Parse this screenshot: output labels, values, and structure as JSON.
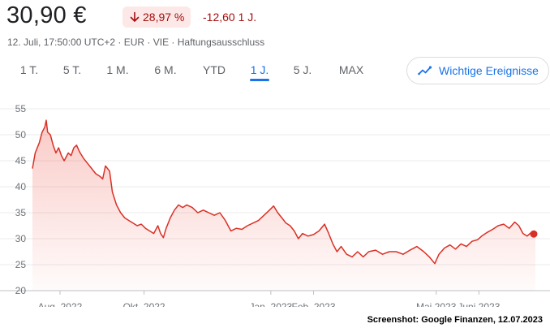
{
  "quote": {
    "price": "30,90 €",
    "change_percent": "28,97 %",
    "change_abs": "-12,60 1 J.",
    "meta": "12. Juli, 17:50:00 UTC+2 · EUR · VIE · Haftungsausschluss"
  },
  "ranges": [
    "1 T.",
    "5 T.",
    "1 M.",
    "6 M.",
    "YTD",
    "1 J.",
    "5 J.",
    "MAX"
  ],
  "active_range": "1 J.",
  "events_button": {
    "label": "Wichtige Ereignisse",
    "icon": "trend-line-icon"
  },
  "colors": {
    "negative": "#d93025",
    "negative_bg": "#fce8e6",
    "negative_text": "#a50e0e",
    "accent": "#1a73e8"
  },
  "credit": "Screenshot: Google Finanzen, 12.07.2023",
  "chart_data": {
    "type": "area",
    "ylim": [
      20,
      55
    ],
    "yticks": [
      20,
      25,
      30,
      35,
      40,
      45,
      50,
      55
    ],
    "x_domain": [
      "2022-07-12",
      "2023-07-12"
    ],
    "xticks": [
      {
        "date": "2022-08-01",
        "label": "Aug. 2022"
      },
      {
        "date": "2022-10-01",
        "label": "Okt. 2022"
      },
      {
        "date": "2023-01-01",
        "label": "Jan. 2023"
      },
      {
        "date": "2023-02-01",
        "label": "Feb. 2023"
      },
      {
        "date": "2023-05-01",
        "label": "Mai 2023"
      },
      {
        "date": "2023-06-01",
        "label": "Juni 2023"
      }
    ],
    "grid": true,
    "series": [
      {
        "points": [
          [
            "2022-07-12",
            43.5
          ],
          [
            "2022-07-14",
            46.5
          ],
          [
            "2022-07-17",
            48.5
          ],
          [
            "2022-07-19",
            50.5
          ],
          [
            "2022-07-21",
            51.5
          ],
          [
            "2022-07-22",
            52.8
          ],
          [
            "2022-07-23",
            50.5
          ],
          [
            "2022-07-25",
            50.0
          ],
          [
            "2022-07-27",
            48.0
          ],
          [
            "2022-07-29",
            46.5
          ],
          [
            "2022-07-31",
            47.5
          ],
          [
            "2022-08-02",
            46.0
          ],
          [
            "2022-08-04",
            45.0
          ],
          [
            "2022-08-07",
            46.5
          ],
          [
            "2022-08-09",
            46.0
          ],
          [
            "2022-08-11",
            47.5
          ],
          [
            "2022-08-13",
            48.0
          ],
          [
            "2022-08-15",
            46.8
          ],
          [
            "2022-08-18",
            45.5
          ],
          [
            "2022-08-21",
            44.5
          ],
          [
            "2022-08-24",
            43.5
          ],
          [
            "2022-08-27",
            42.5
          ],
          [
            "2022-08-30",
            42.0
          ],
          [
            "2022-09-01",
            41.5
          ],
          [
            "2022-09-03",
            44.0
          ],
          [
            "2022-09-06",
            43.0
          ],
          [
            "2022-09-08",
            39.0
          ],
          [
            "2022-09-11",
            36.5
          ],
          [
            "2022-09-14",
            35.0
          ],
          [
            "2022-09-17",
            34.0
          ],
          [
            "2022-09-20",
            33.5
          ],
          [
            "2022-09-23",
            33.0
          ],
          [
            "2022-09-26",
            32.5
          ],
          [
            "2022-09-29",
            32.8
          ],
          [
            "2022-10-02",
            32.0
          ],
          [
            "2022-10-05",
            31.5
          ],
          [
            "2022-10-08",
            31.0
          ],
          [
            "2022-10-11",
            32.5
          ],
          [
            "2022-10-13",
            31.0
          ],
          [
            "2022-10-15",
            30.2
          ],
          [
            "2022-10-17",
            32.0
          ],
          [
            "2022-10-20",
            34.0
          ],
          [
            "2022-10-23",
            35.5
          ],
          [
            "2022-10-26",
            36.5
          ],
          [
            "2022-10-29",
            36.0
          ],
          [
            "2022-11-01",
            36.5
          ],
          [
            "2022-11-05",
            36.0
          ],
          [
            "2022-11-09",
            35.0
          ],
          [
            "2022-11-13",
            35.5
          ],
          [
            "2022-11-17",
            35.0
          ],
          [
            "2022-11-21",
            34.5
          ],
          [
            "2022-11-25",
            35.0
          ],
          [
            "2022-11-29",
            33.5
          ],
          [
            "2022-12-03",
            31.5
          ],
          [
            "2022-12-07",
            32.0
          ],
          [
            "2022-12-11",
            31.8
          ],
          [
            "2022-12-15",
            32.5
          ],
          [
            "2022-12-19",
            33.0
          ],
          [
            "2022-12-23",
            33.5
          ],
          [
            "2022-12-27",
            34.5
          ],
          [
            "2022-12-31",
            35.5
          ],
          [
            "2023-01-03",
            36.3
          ],
          [
            "2023-01-06",
            35.0
          ],
          [
            "2023-01-09",
            34.0
          ],
          [
            "2023-01-12",
            33.0
          ],
          [
            "2023-01-15",
            32.5
          ],
          [
            "2023-01-18",
            31.5
          ],
          [
            "2023-01-21",
            30.0
          ],
          [
            "2023-01-24",
            31.0
          ],
          [
            "2023-01-28",
            30.5
          ],
          [
            "2023-02-01",
            30.8
          ],
          [
            "2023-02-05",
            31.5
          ],
          [
            "2023-02-09",
            32.8
          ],
          [
            "2023-02-12",
            31.0
          ],
          [
            "2023-02-15",
            29.0
          ],
          [
            "2023-02-18",
            27.5
          ],
          [
            "2023-02-21",
            28.5
          ],
          [
            "2023-02-25",
            27.0
          ],
          [
            "2023-03-01",
            26.5
          ],
          [
            "2023-03-05",
            27.5
          ],
          [
            "2023-03-09",
            26.5
          ],
          [
            "2023-03-13",
            27.5
          ],
          [
            "2023-03-18",
            27.8
          ],
          [
            "2023-03-23",
            27.0
          ],
          [
            "2023-03-28",
            27.5
          ],
          [
            "2023-04-02",
            27.5
          ],
          [
            "2023-04-07",
            27.0
          ],
          [
            "2023-04-12",
            27.8
          ],
          [
            "2023-04-17",
            28.5
          ],
          [
            "2023-04-22",
            27.5
          ],
          [
            "2023-04-26",
            26.5
          ],
          [
            "2023-04-30",
            25.2
          ],
          [
            "2023-05-03",
            27.0
          ],
          [
            "2023-05-07",
            28.2
          ],
          [
            "2023-05-11",
            28.8
          ],
          [
            "2023-05-15",
            28.0
          ],
          [
            "2023-05-19",
            29.0
          ],
          [
            "2023-05-23",
            28.5
          ],
          [
            "2023-05-27",
            29.5
          ],
          [
            "2023-05-31",
            29.8
          ],
          [
            "2023-06-03",
            30.5
          ],
          [
            "2023-06-07",
            31.2
          ],
          [
            "2023-06-11",
            31.8
          ],
          [
            "2023-06-15",
            32.5
          ],
          [
            "2023-06-19",
            32.8
          ],
          [
            "2023-06-23",
            32.0
          ],
          [
            "2023-06-27",
            33.2
          ],
          [
            "2023-06-30",
            32.5
          ],
          [
            "2023-07-03",
            31.0
          ],
          [
            "2023-07-06",
            30.5
          ],
          [
            "2023-07-09",
            31.2
          ],
          [
            "2023-07-12",
            30.9
          ]
        ]
      }
    ]
  }
}
